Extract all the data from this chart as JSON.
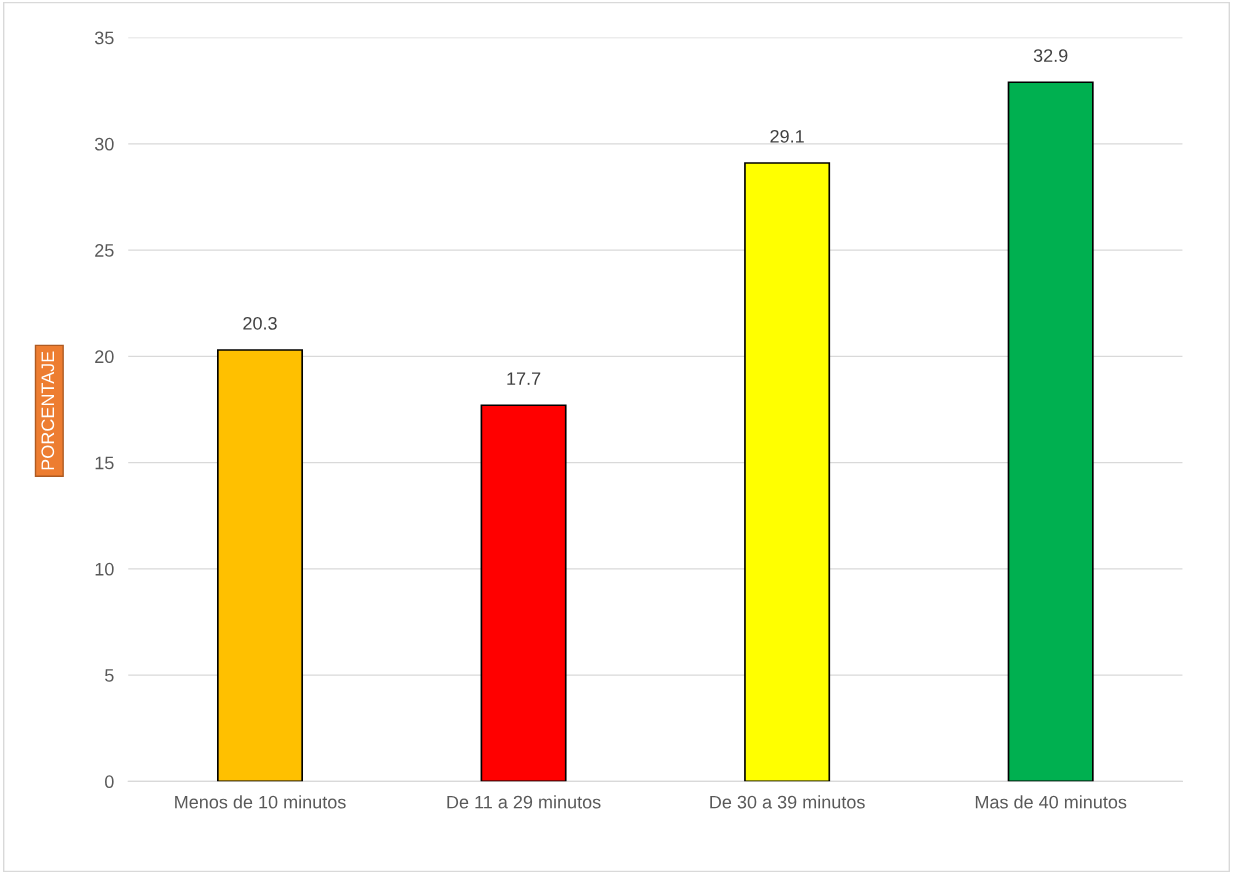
{
  "chart_data": {
    "type": "bar",
    "ylabel": "PORCENTAJE",
    "categories": [
      "Menos de 10 minutos",
      "De 11 a 29 minutos",
      "De 30 a 39 minutos",
      "Mas de 40 minutos"
    ],
    "values": [
      20.3,
      17.7,
      29.1,
      32.9
    ],
    "colors": [
      "#ffc000",
      "#ff0000",
      "#ffff00",
      "#00b050"
    ],
    "ylim": [
      0,
      35
    ],
    "yticks": [
      0,
      5,
      10,
      15,
      20,
      25,
      30,
      35
    ],
    "grid": "y",
    "data_labels": true,
    "legend": false
  }
}
